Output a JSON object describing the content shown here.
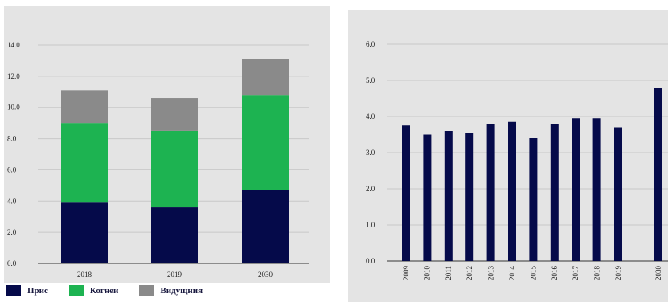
{
  "chart_data": [
    {
      "type": "bar",
      "stacked": true,
      "categories": [
        "2018",
        "2019",
        "2030"
      ],
      "series": [
        {
          "name": "Прис",
          "values": [
            3.9,
            3.6,
            4.7
          ],
          "color": "#050a4a"
        },
        {
          "name": "Когнеи",
          "values": [
            5.1,
            4.9,
            6.1
          ],
          "color": "#1db351"
        },
        {
          "name": "Видущния",
          "values": [
            2.1,
            2.1,
            2.3
          ],
          "color": "#8a8a8a"
        }
      ],
      "y_ticks": [
        "0.0",
        "2.0",
        "4.0",
        "6.0",
        "8.0",
        "10.0",
        "12.0",
        "14.0"
      ],
      "ylim": [
        0,
        14
      ],
      "grid": true,
      "legend_position": "bottom-left"
    },
    {
      "type": "bar",
      "categories": [
        "2009",
        "2010",
        "2011",
        "2012",
        "2013",
        "2014",
        "2015",
        "2016",
        "2017",
        "2018",
        "2019",
        "2030"
      ],
      "values": [
        3.75,
        3.5,
        3.6,
        3.55,
        3.8,
        3.85,
        3.4,
        3.8,
        3.95,
        3.95,
        3.7,
        4.8
      ],
      "color": "#050a4a",
      "y_ticks": [
        "0.0",
        "1.0",
        "2.0",
        "3.0",
        "4.0",
        "5.0",
        "6.0"
      ],
      "ylim": [
        0,
        6
      ],
      "grid": true
    }
  ]
}
